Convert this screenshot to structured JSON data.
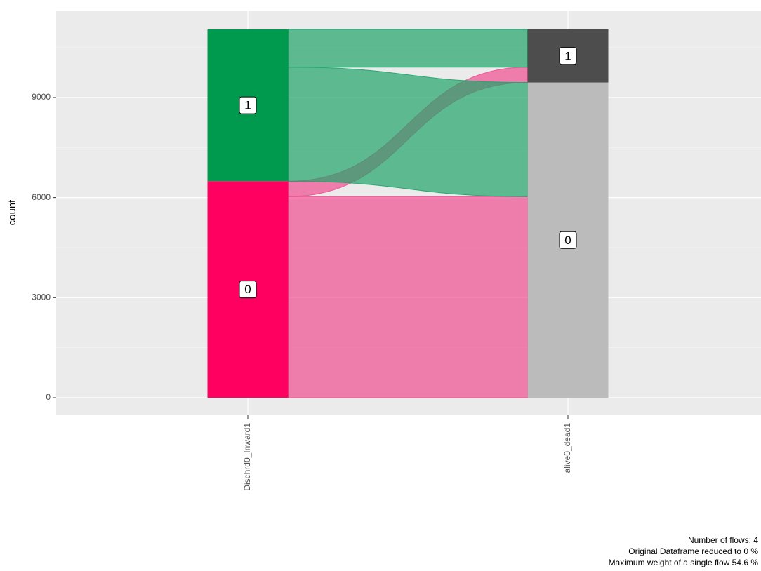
{
  "chart_data": {
    "type": "alluvial",
    "ylabel": "count",
    "ylim": [
      -526,
      11607
    ],
    "yticks": [
      0,
      3000,
      6000,
      9000
    ],
    "minor_yticks": [
      1500,
      4500,
      7500,
      10500
    ],
    "grid": true,
    "axes": [
      {
        "name": "Dischrd0_Inward1",
        "strata": [
          {
            "label": "0",
            "color": "#ff0060"
          },
          {
            "label": "1",
            "color": "#009a4e"
          }
        ]
      },
      {
        "name": "alive0_dead1",
        "strata": [
          {
            "label": "0",
            "color": "#bbbbbb"
          },
          {
            "label": "1",
            "color": "#4d4d4d"
          }
        ]
      }
    ],
    "flows": [
      {
        "from": "0",
        "to": "0",
        "value": 6030,
        "color": "#ef4f91"
      },
      {
        "from": "0",
        "to": "1",
        "value": 460,
        "color": "#ef4f91"
      },
      {
        "from": "1",
        "to": "0",
        "value": 3420,
        "color": "#1fa46a"
      },
      {
        "from": "1",
        "to": "1",
        "value": 1130,
        "color": "#1fa46a"
      }
    ],
    "captions": [
      "Number of flows: 4",
      "Original Dataframe reduced to 0 %",
      "Maximum weight of a single flow 54.6 %"
    ]
  }
}
